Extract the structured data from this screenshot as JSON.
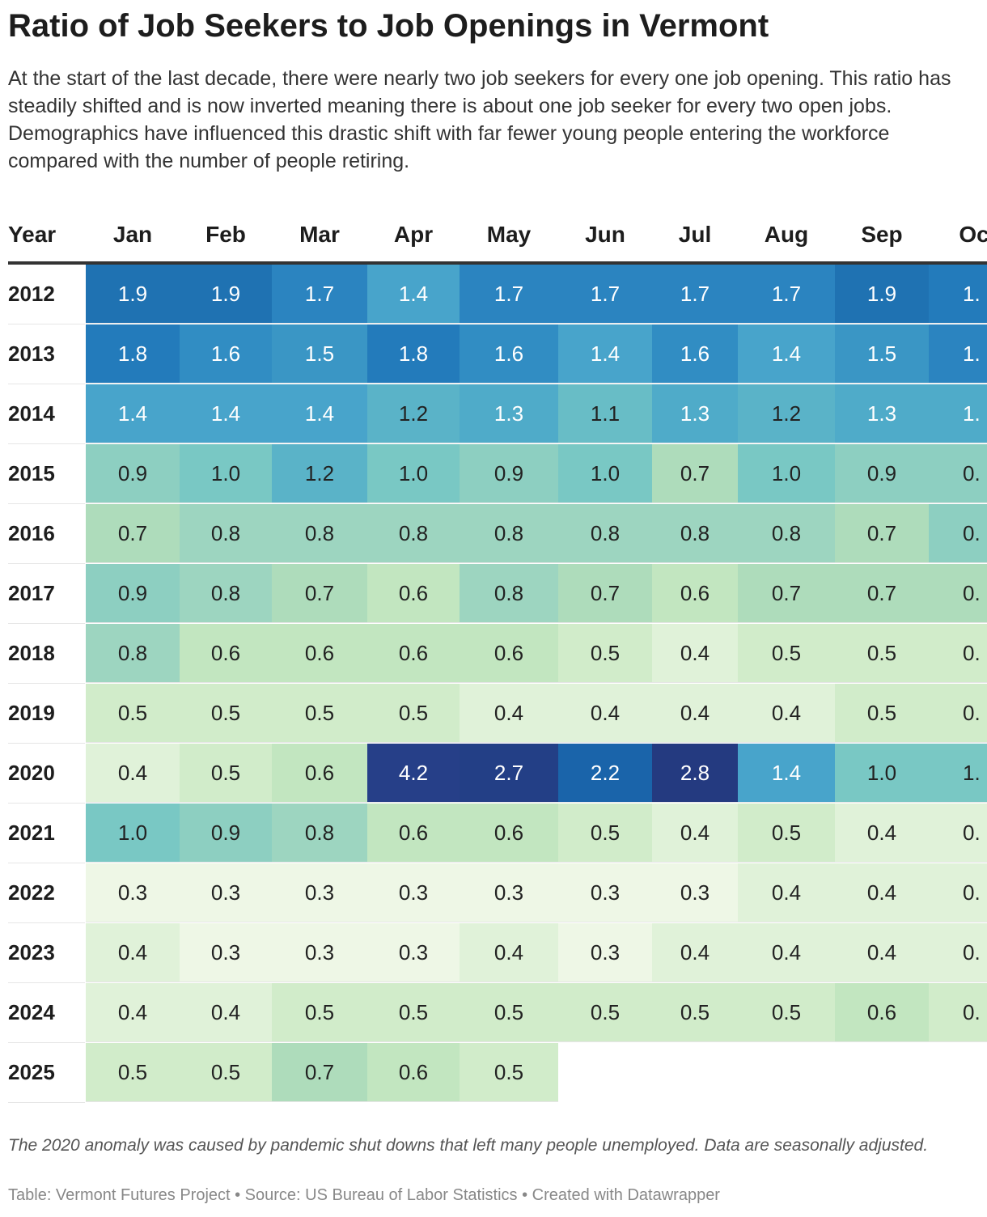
{
  "header": {
    "title": "Ratio of Job Seekers to Job Openings in Vermont",
    "description": "At the start of the last decade, there were nearly two job seekers for every one job opening. This ratio has steadily shifted and is now inverted meaning there is about one job seeker for every two open jobs. Demographics have influenced this drastic shift with far fewer young people entering the workforce compared with the number of people retiring."
  },
  "table": {
    "columns": [
      "Year",
      "Jan",
      "Feb",
      "Mar",
      "Apr",
      "May",
      "Jun",
      "Jul",
      "Aug",
      "Sep",
      "Oc"
    ],
    "rows": [
      {
        "year": "2012",
        "cells": [
          "1.9",
          "1.9",
          "1.7",
          "1.4",
          "1.7",
          "1.7",
          "1.7",
          "1.7",
          "1.9",
          "1."
        ],
        "fills": [
          "#1f72b2",
          "#1f72b2",
          "#2b84c0",
          "#48a4cb",
          "#2b84c0",
          "#2b84c0",
          "#2b84c0",
          "#2b84c0",
          "#1f72b2",
          "#237bbb"
        ]
      },
      {
        "year": "2013",
        "cells": [
          "1.8",
          "1.6",
          "1.5",
          "1.8",
          "1.6",
          "1.4",
          "1.6",
          "1.4",
          "1.5",
          "1."
        ],
        "fills": [
          "#237bbb",
          "#318dc3",
          "#3a96c5",
          "#237bbb",
          "#318dc3",
          "#48a4cb",
          "#318dc3",
          "#48a4cb",
          "#3a96c5",
          "#2b84c0"
        ]
      },
      {
        "year": "2014",
        "cells": [
          "1.4",
          "1.4",
          "1.4",
          "1.2",
          "1.3",
          "1.1",
          "1.3",
          "1.2",
          "1.3",
          "1."
        ],
        "fills": [
          "#48a4cb",
          "#48a4cb",
          "#48a4cb",
          "#5ab3c8",
          "#4fabc9",
          "#68bdc6",
          "#4fabc9",
          "#5ab3c8",
          "#4fabc9",
          "#4fabc9"
        ]
      },
      {
        "year": "2015",
        "cells": [
          "0.9",
          "1.0",
          "1.2",
          "1.0",
          "0.9",
          "1.0",
          "0.7",
          "1.0",
          "0.9",
          "0."
        ],
        "fills": [
          "#8dcfc1",
          "#79c8c4",
          "#5ab3c8",
          "#79c8c4",
          "#8dcfc1",
          "#79c8c4",
          "#aedcbb",
          "#79c8c4",
          "#8dcfc1",
          "#8dcfc1"
        ]
      },
      {
        "year": "2016",
        "cells": [
          "0.7",
          "0.8",
          "0.8",
          "0.8",
          "0.8",
          "0.8",
          "0.8",
          "0.8",
          "0.7",
          "0."
        ],
        "fills": [
          "#aedcbb",
          "#9dd5c0",
          "#9dd5c0",
          "#9dd5c0",
          "#9dd5c0",
          "#9dd5c0",
          "#9dd5c0",
          "#9dd5c0",
          "#aedcbb",
          "#8dcfc1"
        ]
      },
      {
        "year": "2017",
        "cells": [
          "0.9",
          "0.8",
          "0.7",
          "0.6",
          "0.8",
          "0.7",
          "0.6",
          "0.7",
          "0.7",
          "0."
        ],
        "fills": [
          "#8dcfc1",
          "#9dd5c0",
          "#aedcbb",
          "#c2e6c0",
          "#9dd5c0",
          "#aedcbb",
          "#c2e6c0",
          "#aedcbb",
          "#aedcbb",
          "#aedcbb"
        ]
      },
      {
        "year": "2018",
        "cells": [
          "0.8",
          "0.6",
          "0.6",
          "0.6",
          "0.6",
          "0.5",
          "0.4",
          "0.5",
          "0.5",
          "0."
        ],
        "fills": [
          "#9dd5c0",
          "#c2e6c0",
          "#c2e6c0",
          "#c2e6c0",
          "#c2e6c0",
          "#d1ecca",
          "#e0f2d9",
          "#d1ecca",
          "#d1ecca",
          "#d1ecca"
        ]
      },
      {
        "year": "2019",
        "cells": [
          "0.5",
          "0.5",
          "0.5",
          "0.5",
          "0.4",
          "0.4",
          "0.4",
          "0.4",
          "0.5",
          "0."
        ],
        "fills": [
          "#d1ecca",
          "#d1ecca",
          "#d1ecca",
          "#d1ecca",
          "#e0f2d9",
          "#e0f2d9",
          "#e0f2d9",
          "#e0f2d9",
          "#d1ecca",
          "#d1ecca"
        ]
      },
      {
        "year": "2020",
        "cells": [
          "0.4",
          "0.5",
          "0.6",
          "4.2",
          "2.7",
          "2.2",
          "2.8",
          "1.4",
          "1.0",
          "1."
        ],
        "fills": [
          "#e0f2d9",
          "#d1ecca",
          "#c2e6c0",
          "#263f88",
          "#233f86",
          "#1a64aa",
          "#243a80",
          "#48a4cb",
          "#79c8c4",
          "#79c8c4"
        ]
      },
      {
        "year": "2021",
        "cells": [
          "1.0",
          "0.9",
          "0.8",
          "0.6",
          "0.6",
          "0.5",
          "0.4",
          "0.5",
          "0.4",
          "0."
        ],
        "fills": [
          "#79c8c4",
          "#8dcfc1",
          "#9dd5c0",
          "#c2e6c0",
          "#c2e6c0",
          "#d1ecca",
          "#e0f2d9",
          "#d1ecca",
          "#e0f2d9",
          "#e0f2d9"
        ]
      },
      {
        "year": "2022",
        "cells": [
          "0.3",
          "0.3",
          "0.3",
          "0.3",
          "0.3",
          "0.3",
          "0.3",
          "0.4",
          "0.4",
          "0."
        ],
        "fills": [
          "#eef7e6",
          "#eef7e6",
          "#eef7e6",
          "#eef7e6",
          "#eef7e6",
          "#eef7e6",
          "#eef7e6",
          "#e0f2d9",
          "#e0f2d9",
          "#e0f2d9"
        ]
      },
      {
        "year": "2023",
        "cells": [
          "0.4",
          "0.3",
          "0.3",
          "0.3",
          "0.4",
          "0.3",
          "0.4",
          "0.4",
          "0.4",
          "0."
        ],
        "fills": [
          "#e0f2d9",
          "#eef7e6",
          "#eef7e6",
          "#eef7e6",
          "#e0f2d9",
          "#eef7e6",
          "#e0f2d9",
          "#e0f2d9",
          "#e0f2d9",
          "#e0f2d9"
        ]
      },
      {
        "year": "2024",
        "cells": [
          "0.4",
          "0.4",
          "0.5",
          "0.5",
          "0.5",
          "0.5",
          "0.5",
          "0.5",
          "0.6",
          "0."
        ],
        "fills": [
          "#e0f2d9",
          "#e0f2d9",
          "#d1ecca",
          "#d1ecca",
          "#d1ecca",
          "#d1ecca",
          "#d1ecca",
          "#d1ecca",
          "#c2e6c0",
          "#d1ecca"
        ]
      },
      {
        "year": "2025",
        "cells": [
          "0.5",
          "0.5",
          "0.7",
          "0.6",
          "0.5"
        ],
        "fills": [
          "#d1ecca",
          "#d1ecca",
          "#aedcbb",
          "#c2e6c0",
          "#d1ecca"
        ]
      }
    ]
  },
  "footer": {
    "note": "The 2020 anomaly was caused by pandemic shut downs that left many people unemployed. Data are seasonally adjusted.",
    "source": "Table: Vermont Futures Project • Source: US Bureau of Labor Statistics • Created with Datawrapper"
  }
}
